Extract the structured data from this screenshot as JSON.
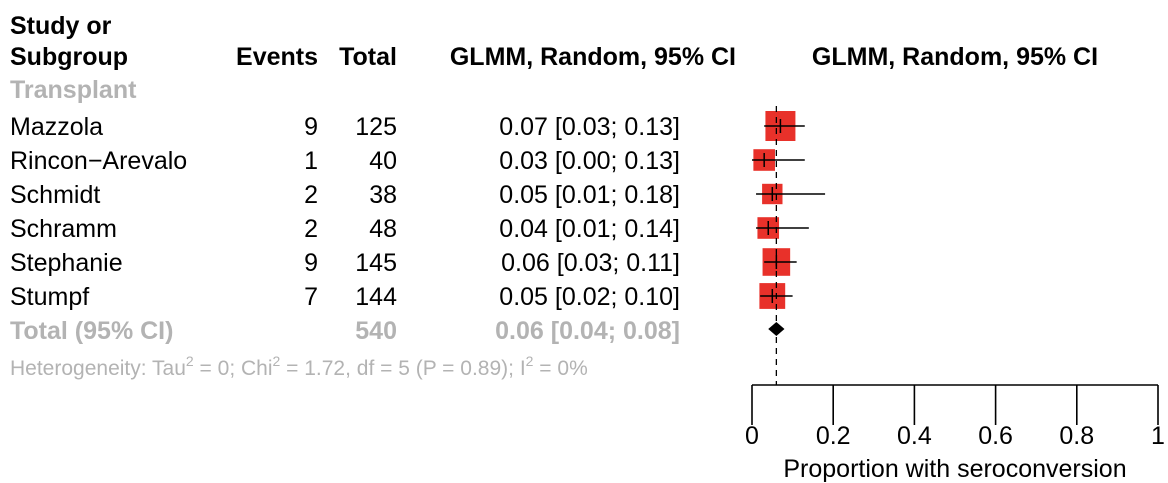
{
  "headers": {
    "study_line1": "Study or",
    "study_line2": "Subgroup",
    "events": "Events",
    "total": "Total",
    "ci_text": "GLMM, Random, 95% CI",
    "ci_plot": "GLMM, Random, 95% CI"
  },
  "subgroup": "Transplant",
  "total_row": {
    "label": "Total (95% CI)",
    "total": "540",
    "ci": "0.06 [0.04; 0.08]"
  },
  "heterogeneity": {
    "p1": "Heterogeneity: Tau",
    "sup1": "2",
    "p2": " = 0; Chi",
    "sup2": "2",
    "p3": " = 1.72, df = 5 (P = 0.89); I",
    "sup3": "2",
    "p4": " = 0%"
  },
  "colors": {
    "box": "#e8312a",
    "grey": "#b3b3b3"
  },
  "chart_data": {
    "type": "forest",
    "xlabel": "Proportion with seroconversion",
    "xlim": [
      0,
      1
    ],
    "ticks": [
      0,
      0.2,
      0.4,
      0.6,
      0.8,
      1
    ],
    "tick_labels": [
      "0",
      "0.2",
      "0.4",
      "0.6",
      "0.8",
      "1"
    ],
    "studies": [
      {
        "name": "Mazzola",
        "events": "9",
        "total": "125",
        "ci_text": "0.07 [0.03; 0.13]",
        "est": 0.07,
        "lo": 0.03,
        "hi": 0.13,
        "weight": 1.0
      },
      {
        "name": "Rincon−Arevalo",
        "events": "1",
        "total": "40",
        "ci_text": "0.03 [0.00; 0.13]",
        "est": 0.03,
        "lo": 0.0,
        "hi": 0.13,
        "weight": 0.72
      },
      {
        "name": "Schmidt",
        "events": "2",
        "total": "38",
        "ci_text": "0.05 [0.01; 0.18]",
        "est": 0.05,
        "lo": 0.01,
        "hi": 0.18,
        "weight": 0.68
      },
      {
        "name": "Schramm",
        "events": "2",
        "total": "48",
        "ci_text": "0.04 [0.01; 0.14]",
        "est": 0.04,
        "lo": 0.01,
        "hi": 0.14,
        "weight": 0.72
      },
      {
        "name": "Stephanie",
        "events": "9",
        "total": "145",
        "ci_text": "0.06 [0.03; 0.11]",
        "est": 0.06,
        "lo": 0.03,
        "hi": 0.11,
        "weight": 0.92
      },
      {
        "name": "Stumpf",
        "events": "7",
        "total": "144",
        "ci_text": "0.05 [0.02; 0.10]",
        "est": 0.05,
        "lo": 0.02,
        "hi": 0.1,
        "weight": 0.86
      }
    ],
    "pooled": {
      "est": 0.06,
      "lo": 0.04,
      "hi": 0.08
    }
  }
}
